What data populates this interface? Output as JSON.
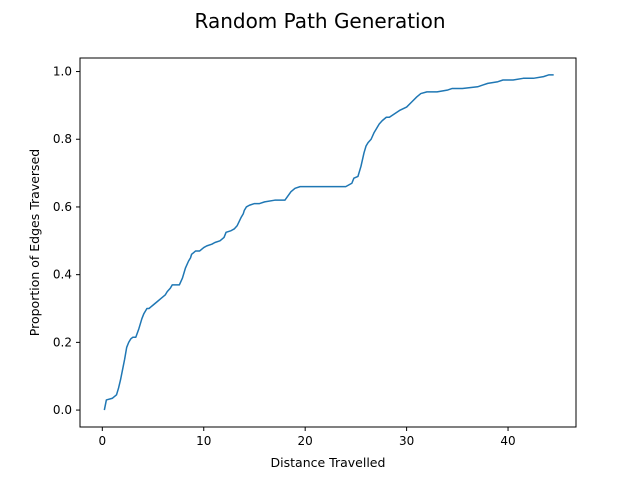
{
  "chart_data": {
    "type": "line",
    "title": "Random Path Generation",
    "xlabel": "Distance Travelled",
    "ylabel": "Proportion of Edges Traversed",
    "xlim": [
      -2.2,
      46.7
    ],
    "ylim": [
      -0.05,
      1.04
    ],
    "xticks": [
      0,
      10,
      20,
      30,
      40
    ],
    "yticks": [
      0.0,
      0.2,
      0.4,
      0.6,
      0.8,
      1.0
    ],
    "ytick_labels": [
      "0.0",
      "0.2",
      "0.4",
      "0.6",
      "0.8",
      "1.0"
    ],
    "grid": false,
    "legend": "none",
    "series": [
      {
        "color": "#1f77b4",
        "x": [
          0.2,
          0.4,
          1.0,
          1.4,
          1.6,
          1.8,
          2.0,
          2.2,
          2.4,
          2.6,
          2.8,
          3.0,
          3.3,
          3.6,
          3.9,
          4.1,
          4.4,
          4.6,
          4.8,
          5.0,
          5.4,
          5.8,
          6.2,
          6.4,
          6.7,
          6.9,
          7.1,
          7.3,
          7.6,
          7.9,
          8.2,
          8.5,
          8.7,
          8.8,
          9.0,
          9.2,
          9.6,
          10.0,
          10.3,
          10.8,
          11.1,
          11.6,
          12.0,
          12.2,
          12.7,
          13.0,
          13.3,
          13.7,
          13.9,
          14.0,
          14.2,
          14.5,
          15.0,
          15.5,
          16.0,
          17.0,
          18.0,
          18.6,
          19.0,
          19.5,
          20.5,
          22.0,
          23.0,
          24.0,
          24.6,
          24.8,
          25.2,
          25.5,
          25.8,
          26.0,
          26.2,
          26.5,
          26.8,
          27.0,
          27.3,
          27.6,
          28.0,
          28.3,
          28.8,
          29.3,
          30.0,
          30.5,
          31.0,
          31.4,
          32.0,
          33.0,
          34.0,
          34.5,
          35.5,
          37.0,
          37.5,
          38.0,
          39.0,
          39.5,
          40.5,
          41.5,
          42.5,
          43.5,
          44.0,
          44.5
        ],
        "y": [
          0.0,
          0.03,
          0.035,
          0.045,
          0.065,
          0.09,
          0.12,
          0.15,
          0.185,
          0.2,
          0.21,
          0.215,
          0.215,
          0.24,
          0.27,
          0.285,
          0.3,
          0.3,
          0.305,
          0.31,
          0.32,
          0.33,
          0.34,
          0.35,
          0.36,
          0.37,
          0.37,
          0.37,
          0.37,
          0.39,
          0.42,
          0.44,
          0.45,
          0.46,
          0.465,
          0.47,
          0.47,
          0.48,
          0.485,
          0.49,
          0.495,
          0.5,
          0.51,
          0.525,
          0.53,
          0.535,
          0.545,
          0.57,
          0.58,
          0.59,
          0.6,
          0.605,
          0.61,
          0.61,
          0.615,
          0.62,
          0.62,
          0.645,
          0.655,
          0.66,
          0.66,
          0.66,
          0.66,
          0.66,
          0.67,
          0.685,
          0.69,
          0.72,
          0.76,
          0.78,
          0.79,
          0.8,
          0.82,
          0.83,
          0.845,
          0.855,
          0.865,
          0.865,
          0.875,
          0.885,
          0.895,
          0.91,
          0.925,
          0.935,
          0.94,
          0.94,
          0.945,
          0.95,
          0.95,
          0.955,
          0.96,
          0.965,
          0.97,
          0.975,
          0.975,
          0.98,
          0.98,
          0.985,
          0.99,
          0.99
        ]
      }
    ]
  }
}
